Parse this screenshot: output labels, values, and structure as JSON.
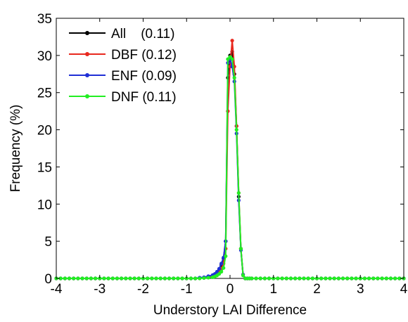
{
  "chart_data": {
    "type": "line",
    "title": "",
    "xlabel": "Understory LAI Difference",
    "ylabel": "Frequency (%)",
    "xlim": [
      -4,
      4
    ],
    "ylim": [
      0,
      35
    ],
    "xticks": [
      -4,
      -3,
      -2,
      -1,
      0,
      1,
      2,
      3,
      4
    ],
    "yticks": [
      0,
      5,
      10,
      15,
      20,
      25,
      30,
      35
    ],
    "grid": false,
    "legend_position": "top-left",
    "series": [
      {
        "name": "All",
        "legend_label": "All    (0.11)",
        "color": "#000000",
        "x": [
          -4.0,
          -3.9,
          -3.8,
          -3.7,
          -3.6,
          -3.5,
          -3.4,
          -3.3,
          -3.2,
          -3.1,
          -3.0,
          -2.9,
          -2.8,
          -2.7,
          -2.6,
          -2.5,
          -2.4,
          -2.3,
          -2.2,
          -2.1,
          -2.0,
          -1.9,
          -1.8,
          -1.7,
          -1.6,
          -1.5,
          -1.4,
          -1.3,
          -1.2,
          -1.1,
          -1.0,
          -0.9,
          -0.8,
          -0.7,
          -0.6,
          -0.5,
          -0.4,
          -0.35,
          -0.3,
          -0.25,
          -0.2,
          -0.15,
          -0.1,
          -0.05,
          0.0,
          0.05,
          0.1,
          0.15,
          0.2,
          0.25,
          0.3,
          0.35,
          0.4,
          0.45,
          0.5,
          0.6,
          0.7,
          0.8,
          0.9,
          1.0,
          1.1,
          1.2,
          1.3,
          1.4,
          1.5,
          1.6,
          1.7,
          1.8,
          1.9,
          2.0,
          2.1,
          2.2,
          2.3,
          2.4,
          2.5,
          2.6,
          2.7,
          2.8,
          2.9,
          3.0,
          3.1,
          3.2,
          3.3,
          3.4,
          3.5,
          3.6,
          3.7,
          3.8,
          3.9,
          4.0
        ],
        "values": [
          0,
          0,
          0,
          0,
          0,
          0,
          0,
          0,
          0,
          0,
          0,
          0,
          0,
          0,
          0,
          0,
          0,
          0,
          0,
          0,
          0,
          0,
          0,
          0,
          0,
          0,
          0,
          0,
          0,
          0,
          0,
          0,
          0,
          0.05,
          0.1,
          0.2,
          0.3,
          0.5,
          0.8,
          1.2,
          1.8,
          2.7,
          5.0,
          27.0,
          30.0,
          30.5,
          27.5,
          20.5,
          11.0,
          4.0,
          0.5,
          0,
          0,
          0,
          0,
          0,
          0,
          0,
          0,
          0,
          0,
          0,
          0,
          0,
          0,
          0,
          0,
          0,
          0,
          0,
          0,
          0,
          0,
          0,
          0,
          0,
          0,
          0,
          0,
          0,
          0,
          0,
          0,
          0,
          0,
          0,
          0,
          0,
          0,
          0
        ]
      },
      {
        "name": "DBF",
        "legend_label": "DBF (0.12)",
        "color": "#e8281e",
        "x": [
          -4.0,
          -3.9,
          -3.8,
          -3.7,
          -3.6,
          -3.5,
          -3.4,
          -3.3,
          -3.2,
          -3.1,
          -3.0,
          -2.9,
          -2.8,
          -2.7,
          -2.6,
          -2.5,
          -2.4,
          -2.3,
          -2.2,
          -2.1,
          -2.0,
          -1.9,
          -1.8,
          -1.7,
          -1.6,
          -1.5,
          -1.4,
          -1.3,
          -1.2,
          -1.1,
          -1.0,
          -0.9,
          -0.8,
          -0.7,
          -0.6,
          -0.5,
          -0.4,
          -0.35,
          -0.3,
          -0.25,
          -0.2,
          -0.15,
          -0.1,
          -0.05,
          0.0,
          0.05,
          0.1,
          0.15,
          0.2,
          0.25,
          0.3,
          0.35,
          0.4,
          0.45,
          0.5,
          0.6,
          0.7,
          0.8,
          0.9,
          1.0,
          1.1,
          1.2,
          1.3,
          1.4,
          1.5,
          1.6,
          1.7,
          1.8,
          1.9,
          2.0,
          2.1,
          2.2,
          2.3,
          2.4,
          2.5,
          2.6,
          2.7,
          2.8,
          2.9,
          3.0,
          3.1,
          3.2,
          3.3,
          3.4,
          3.5,
          3.6,
          3.7,
          3.8,
          3.9,
          4.0
        ],
        "values": [
          0,
          0,
          0,
          0,
          0,
          0,
          0,
          0,
          0,
          0,
          0,
          0,
          0,
          0,
          0,
          0,
          0,
          0,
          0,
          0,
          0,
          0,
          0,
          0,
          0,
          0,
          0,
          0,
          0,
          0,
          0,
          0,
          0,
          0.05,
          0.1,
          0.2,
          0.3,
          0.4,
          0.6,
          0.9,
          1.3,
          2.0,
          4.0,
          22.5,
          28.5,
          32.0,
          28.5,
          20.5,
          11.5,
          4.0,
          0.5,
          0,
          0,
          0,
          0,
          0,
          0,
          0,
          0,
          0,
          0,
          0,
          0,
          0,
          0,
          0,
          0,
          0,
          0,
          0,
          0,
          0,
          0,
          0,
          0,
          0,
          0,
          0,
          0,
          0,
          0,
          0,
          0,
          0,
          0,
          0,
          0,
          0,
          0,
          0
        ]
      },
      {
        "name": "ENF",
        "legend_label": "ENF (0.09)",
        "color": "#1f2fd6",
        "x": [
          -4.0,
          -3.9,
          -3.8,
          -3.7,
          -3.6,
          -3.5,
          -3.4,
          -3.3,
          -3.2,
          -3.1,
          -3.0,
          -2.9,
          -2.8,
          -2.7,
          -2.6,
          -2.5,
          -2.4,
          -2.3,
          -2.2,
          -2.1,
          -2.0,
          -1.9,
          -1.8,
          -1.7,
          -1.6,
          -1.5,
          -1.4,
          -1.3,
          -1.2,
          -1.1,
          -1.0,
          -0.9,
          -0.8,
          -0.7,
          -0.6,
          -0.5,
          -0.4,
          -0.35,
          -0.3,
          -0.25,
          -0.2,
          -0.15,
          -0.1,
          -0.05,
          0.0,
          0.05,
          0.1,
          0.15,
          0.2,
          0.25,
          0.3,
          0.35,
          0.4,
          0.45,
          0.5,
          0.6,
          0.7,
          0.8,
          0.9,
          1.0,
          1.1,
          1.2,
          1.3,
          1.4,
          1.5,
          1.6,
          1.7,
          1.8,
          1.9,
          2.0,
          2.1,
          2.2,
          2.3,
          2.4,
          2.5,
          2.6,
          2.7,
          2.8,
          2.9,
          3.0,
          3.1,
          3.2,
          3.3,
          3.4,
          3.5,
          3.6,
          3.7,
          3.8,
          3.9,
          4.0
        ],
        "values": [
          0,
          0,
          0,
          0,
          0,
          0,
          0,
          0,
          0,
          0,
          0,
          0,
          0,
          0,
          0,
          0,
          0,
          0,
          0,
          0,
          0,
          0,
          0,
          0,
          0,
          0,
          0,
          0,
          0,
          0,
          0,
          0,
          0,
          0.1,
          0.15,
          0.3,
          0.45,
          0.6,
          0.9,
          1.3,
          2.0,
          2.8,
          5.0,
          29.0,
          29.5,
          28.5,
          26.5,
          19.5,
          10.5,
          3.8,
          0.5,
          0,
          0,
          0,
          0,
          0,
          0,
          0,
          0,
          0,
          0,
          0,
          0,
          0,
          0,
          0,
          0,
          0,
          0,
          0,
          0,
          0,
          0,
          0,
          0,
          0,
          0,
          0,
          0,
          0,
          0,
          0,
          0,
          0,
          0,
          0,
          0,
          0,
          0,
          0
        ]
      },
      {
        "name": "DNF",
        "legend_label": "DNF (0.11)",
        "color": "#22ee22",
        "x": [
          -4.0,
          -3.9,
          -3.8,
          -3.7,
          -3.6,
          -3.5,
          -3.4,
          -3.3,
          -3.2,
          -3.1,
          -3.0,
          -2.9,
          -2.8,
          -2.7,
          -2.6,
          -2.5,
          -2.4,
          -2.3,
          -2.2,
          -2.1,
          -2.0,
          -1.9,
          -1.8,
          -1.7,
          -1.6,
          -1.5,
          -1.4,
          -1.3,
          -1.2,
          -1.1,
          -1.0,
          -0.9,
          -0.8,
          -0.7,
          -0.6,
          -0.5,
          -0.4,
          -0.35,
          -0.3,
          -0.25,
          -0.2,
          -0.15,
          -0.1,
          -0.05,
          0.0,
          0.05,
          0.1,
          0.15,
          0.2,
          0.25,
          0.3,
          0.35,
          0.4,
          0.45,
          0.5,
          0.6,
          0.7,
          0.8,
          0.9,
          1.0,
          1.1,
          1.2,
          1.3,
          1.4,
          1.5,
          1.6,
          1.7,
          1.8,
          1.9,
          2.0,
          2.1,
          2.2,
          2.3,
          2.4,
          2.5,
          2.6,
          2.7,
          2.8,
          2.9,
          3.0,
          3.1,
          3.2,
          3.3,
          3.4,
          3.5,
          3.6,
          3.7,
          3.8,
          3.9,
          4.0
        ],
        "values": [
          0,
          0,
          0,
          0,
          0,
          0,
          0,
          0,
          0,
          0,
          0,
          0,
          0,
          0,
          0,
          0,
          0,
          0,
          0,
          0,
          0,
          0,
          0,
          0,
          0,
          0,
          0,
          0,
          0,
          0,
          0,
          0,
          0,
          0,
          0.05,
          0.1,
          0.15,
          0.25,
          0.4,
          0.6,
          0.9,
          1.4,
          3.0,
          29.5,
          29.8,
          29.5,
          27.0,
          20.0,
          11.5,
          4.0,
          0.4,
          0,
          0,
          0,
          0,
          0,
          0,
          0,
          0,
          0,
          0,
          0,
          0,
          0,
          0,
          0,
          0,
          0,
          0,
          0,
          0,
          0,
          0,
          0,
          0,
          0,
          0,
          0,
          0,
          0,
          0,
          0,
          0,
          0,
          0,
          0,
          0,
          0,
          0,
          0
        ]
      }
    ]
  }
}
